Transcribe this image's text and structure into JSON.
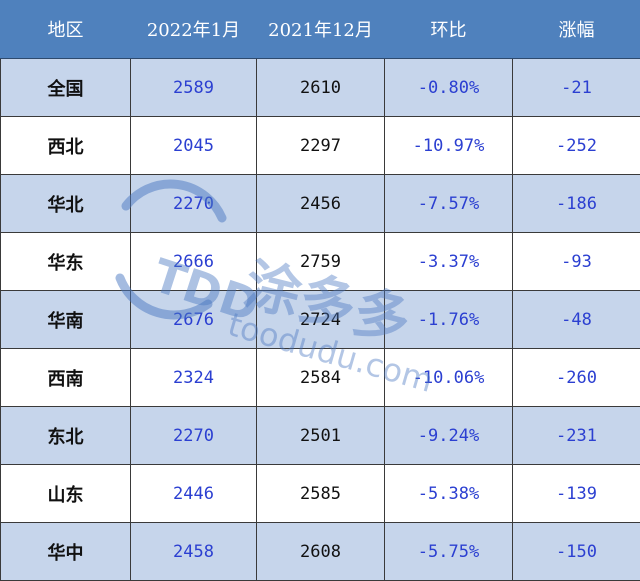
{
  "table": {
    "headers": [
      "地区",
      "2022年1月",
      "2021年12月",
      "环比",
      "涨幅"
    ],
    "rows": [
      {
        "region": "全国",
        "jan_2022": "2589",
        "dec_2021": "2610",
        "mom": "-0.80%",
        "change": "-21"
      },
      {
        "region": "西北",
        "jan_2022": "2045",
        "dec_2021": "2297",
        "mom": "-10.97%",
        "change": "-252"
      },
      {
        "region": "华北",
        "jan_2022": "2270",
        "dec_2021": "2456",
        "mom": "-7.57%",
        "change": "-186"
      },
      {
        "region": "华东",
        "jan_2022": "2666",
        "dec_2021": "2759",
        "mom": "-3.37%",
        "change": "-93"
      },
      {
        "region": "华南",
        "jan_2022": "2676",
        "dec_2021": "2724",
        "mom": "-1.76%",
        "change": "-48"
      },
      {
        "region": "西南",
        "jan_2022": "2324",
        "dec_2021": "2584",
        "mom": "-10.06%",
        "change": "-260"
      },
      {
        "region": "东北",
        "jan_2022": "2270",
        "dec_2021": "2501",
        "mom": "-9.24%",
        "change": "-231"
      },
      {
        "region": "山东",
        "jan_2022": "2446",
        "dec_2021": "2585",
        "mom": "-5.38%",
        "change": "-139"
      },
      {
        "region": "华中",
        "jan_2022": "2458",
        "dec_2021": "2608",
        "mom": "-5.75%",
        "change": "-150"
      }
    ]
  },
  "watermark": {
    "logo_text": "TDD",
    "brand_text": "涂多多",
    "url_text": "toodudu.com",
    "color": "#4a78c2"
  },
  "colors": {
    "header_bg": "#4f81bd",
    "header_text": "#ffffff",
    "row_shaded": "#c6d5eb",
    "row_plain": "#ffffff",
    "value_blue": "#2b3fd1",
    "border": "#3a3a3a"
  }
}
